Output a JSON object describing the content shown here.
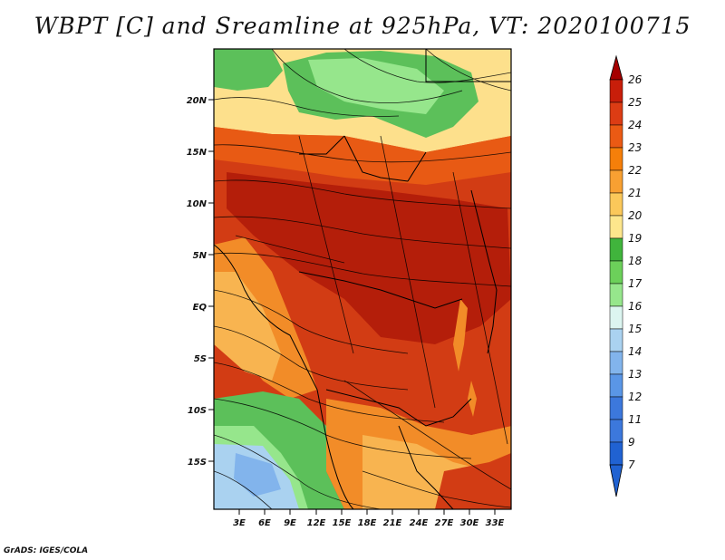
{
  "title": "WBPT [C] and Sreamline at 925hPa, VT: 2020100715",
  "credit": "GrADS: IGES/COLA",
  "lat_labels": [
    "20N",
    "15N",
    "10N",
    "5N",
    "EQ",
    "5S",
    "10S",
    "15S"
  ],
  "lon_labels": [
    "3E",
    "6E",
    "9E",
    "12E",
    "15E",
    "18E",
    "21E",
    "24E",
    "27E",
    "30E",
    "33E"
  ],
  "colorbar": {
    "labels": [
      "26",
      "25",
      "24",
      "23",
      "22",
      "21",
      "20",
      "19",
      "18",
      "17",
      "16",
      "15",
      "14",
      "13",
      "12",
      "11",
      "9",
      "7"
    ],
    "colors": [
      "#a50000",
      "#c81e0a",
      "#dc3c14",
      "#eb5a14",
      "#f57f0a",
      "#f8a032",
      "#fbc85a",
      "#fde68c",
      "#40b43c",
      "#6cd05a",
      "#96e68c",
      "#dcf5f0",
      "#aad2f0",
      "#82b4ec",
      "#5a96e6",
      "#3c78dc",
      "#2062d2"
    ]
  },
  "palette": {
    "dark_red": "#b41e0a",
    "red": "#d23c14",
    "orange_red": "#e85a14",
    "orange": "#f28c28",
    "light_orange": "#f8b450",
    "pale_yellow": "#fde08c",
    "green": "#5cc05a",
    "light_green": "#96e68c",
    "light_blue": "#aad2f0",
    "blue": "#82b4ec"
  }
}
